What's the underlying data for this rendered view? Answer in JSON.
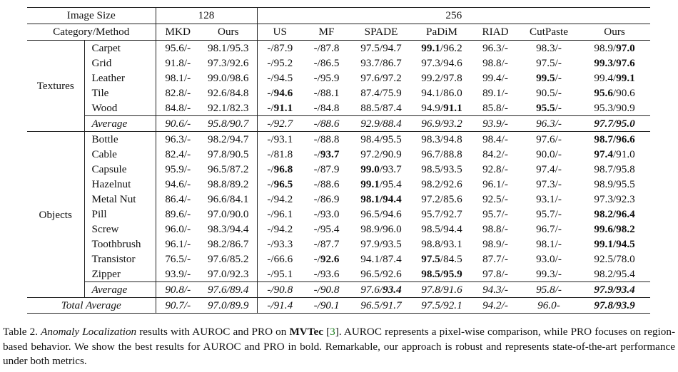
{
  "table": {
    "corner_top": "Image Size",
    "corner_bottom": "Category/Method",
    "size_groups": [
      "128",
      "256"
    ],
    "methods_128": [
      "MKD",
      "Ours"
    ],
    "methods_256": [
      "US",
      "MF",
      "SPADE",
      "PaDiM",
      "RIAD",
      "CutPaste",
      "Ours"
    ],
    "groups": [
      {
        "name": "Textures",
        "rows": [
          {
            "cat": "Carpet",
            "cells": [
              [
                "95.6/-",
                ""
              ],
              [
                "98.1/95.3",
                ""
              ],
              [
                "-/87.9",
                ""
              ],
              [
                "-/87.8",
                ""
              ],
              [
                "97.5/94.7",
                ""
              ],
              [
                "99.1",
                "/96.2"
              ],
              [
                "96.3/-",
                ""
              ],
              [
                "98.3/-",
                ""
              ],
              [
                "98.9/",
                "97.0"
              ]
            ],
            "bold": [
              0,
              0,
              0,
              0,
              0,
              1,
              0,
              0,
              2
            ]
          },
          {
            "cat": "Grid",
            "cells": [
              [
                "91.8/-",
                ""
              ],
              [
                "97.3/92.6",
                ""
              ],
              [
                "-/95.2",
                ""
              ],
              [
                "-/86.5",
                ""
              ],
              [
                "93.7/86.7",
                ""
              ],
              [
                "97.3/94.6",
                ""
              ],
              [
                "98.8/-",
                ""
              ],
              [
                "97.5/-",
                ""
              ],
              [
                "99.3/97.6",
                ""
              ]
            ],
            "bold": [
              0,
              0,
              0,
              0,
              0,
              0,
              0,
              0,
              3
            ]
          },
          {
            "cat": "Leather",
            "cells": [
              [
                "98.1/-",
                ""
              ],
              [
                "99.0/98.6",
                ""
              ],
              [
                "-/94.5",
                ""
              ],
              [
                "-/95.9",
                ""
              ],
              [
                "97.6/97.2",
                ""
              ],
              [
                "99.2/97.8",
                ""
              ],
              [
                "99.4/-",
                ""
              ],
              [
                "99.5",
                "/-"
              ],
              [
                "99.4/",
                "99.1"
              ]
            ],
            "bold": [
              0,
              0,
              0,
              0,
              0,
              0,
              0,
              1,
              2
            ]
          },
          {
            "cat": "Tile",
            "cells": [
              [
                "82.8/-",
                ""
              ],
              [
                "92.6/84.8",
                ""
              ],
              [
                "-/",
                "94.6"
              ],
              [
                "-/88.1",
                ""
              ],
              [
                "87.4/75.9",
                ""
              ],
              [
                "94.1/86.0",
                ""
              ],
              [
                "89.1/-",
                ""
              ],
              [
                "90.5/-",
                ""
              ],
              [
                "95.6",
                "/90.6"
              ]
            ],
            "bold": [
              0,
              0,
              2,
              0,
              0,
              0,
              0,
              0,
              1
            ]
          },
          {
            "cat": "Wood",
            "cells": [
              [
                "84.8/-",
                ""
              ],
              [
                "92.1/82.3",
                ""
              ],
              [
                "-/",
                "91.1"
              ],
              [
                "-/84.8",
                ""
              ],
              [
                "88.5/87.4",
                ""
              ],
              [
                "94.9/",
                "91.1"
              ],
              [
                "85.8/-",
                ""
              ],
              [
                "95.5",
                "/-"
              ],
              [
                "95.3/90.9",
                ""
              ]
            ],
            "bold": [
              0,
              0,
              2,
              0,
              0,
              2,
              0,
              1,
              0
            ]
          }
        ],
        "average": {
          "label": "Average",
          "cells": [
            [
              "90.6/-",
              ""
            ],
            [
              "95.8/90.7",
              ""
            ],
            [
              "-/92.7",
              ""
            ],
            [
              "-/88.6",
              ""
            ],
            [
              "92.9/88.4",
              ""
            ],
            [
              "96.9/93.2",
              ""
            ],
            [
              "93.9/-",
              ""
            ],
            [
              "96.3/-",
              ""
            ],
            [
              "97.7/95.0",
              ""
            ]
          ],
          "bold": [
            0,
            0,
            0,
            0,
            0,
            0,
            0,
            0,
            3
          ]
        }
      },
      {
        "name": "Objects",
        "rows": [
          {
            "cat": "Bottle",
            "cells": [
              [
                "96.3/-",
                ""
              ],
              [
                "98.2/94.7",
                ""
              ],
              [
                "-/93.1",
                ""
              ],
              [
                "-/88.8",
                ""
              ],
              [
                "98.4/95.5",
                ""
              ],
              [
                "98.3/94.8",
                ""
              ],
              [
                "98.4/-",
                ""
              ],
              [
                "97.6/-",
                ""
              ],
              [
                "98.7/96.6",
                ""
              ]
            ],
            "bold": [
              0,
              0,
              0,
              0,
              0,
              0,
              0,
              0,
              3
            ]
          },
          {
            "cat": "Cable",
            "cells": [
              [
                "82.4/-",
                ""
              ],
              [
                "97.8/90.5",
                ""
              ],
              [
                "-/81.8",
                ""
              ],
              [
                "-/",
                "93.7"
              ],
              [
                "97.2/90.9",
                ""
              ],
              [
                "96.7/88.8",
                ""
              ],
              [
                "84.2/-",
                ""
              ],
              [
                "90.0/-",
                ""
              ],
              [
                "97.4",
                "/91.0"
              ]
            ],
            "bold": [
              0,
              0,
              0,
              2,
              0,
              0,
              0,
              0,
              1
            ]
          },
          {
            "cat": "Capsule",
            "cells": [
              [
                "95.9/-",
                ""
              ],
              [
                "96.5/87.2",
                ""
              ],
              [
                "-/",
                "96.8"
              ],
              [
                "-/87.9",
                ""
              ],
              [
                "99.0",
                "/93.7"
              ],
              [
                "98.5/93.5",
                ""
              ],
              [
                "92.8/-",
                ""
              ],
              [
                "97.4/-",
                ""
              ],
              [
                "98.7/95.8",
                ""
              ]
            ],
            "bold": [
              0,
              0,
              2,
              0,
              1,
              0,
              0,
              0,
              0
            ]
          },
          {
            "cat": "Hazelnut",
            "cells": [
              [
                "94.6/-",
                ""
              ],
              [
                "98.8/89.2",
                ""
              ],
              [
                "-/",
                "96.5"
              ],
              [
                "-/88.6",
                ""
              ],
              [
                "99.1",
                "/95.4"
              ],
              [
                "98.2/92.6",
                ""
              ],
              [
                "96.1/-",
                ""
              ],
              [
                "97.3/-",
                ""
              ],
              [
                "98.9/95.5",
                ""
              ]
            ],
            "bold": [
              0,
              0,
              2,
              0,
              1,
              0,
              0,
              0,
              0
            ]
          },
          {
            "cat": "Metal Nut",
            "cells": [
              [
                "86.4/-",
                ""
              ],
              [
                "96.6/84.1",
                ""
              ],
              [
                "-/94.2",
                ""
              ],
              [
                "-/86.9",
                ""
              ],
              [
                "98.1/94.4",
                ""
              ],
              [
                "97.2/85.6",
                ""
              ],
              [
                "92.5/-",
                ""
              ],
              [
                "93.1/-",
                ""
              ],
              [
                "97.3/92.3",
                ""
              ]
            ],
            "bold": [
              0,
              0,
              0,
              0,
              3,
              0,
              0,
              0,
              0
            ]
          },
          {
            "cat": "Pill",
            "cells": [
              [
                "89.6/-",
                ""
              ],
              [
                "97.0/90.0",
                ""
              ],
              [
                "-/96.1",
                ""
              ],
              [
                "-/93.0",
                ""
              ],
              [
                "96.5/94.6",
                ""
              ],
              [
                "95.7/92.7",
                ""
              ],
              [
                "95.7/-",
                ""
              ],
              [
                "95.7/-",
                ""
              ],
              [
                "98.2/96.4",
                ""
              ]
            ],
            "bold": [
              0,
              0,
              0,
              0,
              0,
              0,
              0,
              0,
              3
            ]
          },
          {
            "cat": "Screw",
            "cells": [
              [
                "96.0/-",
                ""
              ],
              [
                "98.3/94.4",
                ""
              ],
              [
                "-/94.2",
                ""
              ],
              [
                "-/95.4",
                ""
              ],
              [
                "98.9/96.0",
                ""
              ],
              [
                "98.5/94.4",
                ""
              ],
              [
                "98.8/-",
                ""
              ],
              [
                "96.7/-",
                ""
              ],
              [
                "99.6/98.2",
                ""
              ]
            ],
            "bold": [
              0,
              0,
              0,
              0,
              0,
              0,
              0,
              0,
              3
            ]
          },
          {
            "cat": "Toothbrush",
            "cells": [
              [
                "96.1/-",
                ""
              ],
              [
                "98.2/86.7",
                ""
              ],
              [
                "-/93.3",
                ""
              ],
              [
                "-/87.7",
                ""
              ],
              [
                "97.9/93.5",
                ""
              ],
              [
                "98.8/93.1",
                ""
              ],
              [
                "98.9/-",
                ""
              ],
              [
                "98.1/-",
                ""
              ],
              [
                "99.1/94.5",
                ""
              ]
            ],
            "bold": [
              0,
              0,
              0,
              0,
              0,
              0,
              0,
              0,
              3
            ]
          },
          {
            "cat": "Transistor",
            "cells": [
              [
                "76.5/-",
                ""
              ],
              [
                "97.6/85.2",
                ""
              ],
              [
                "-/66.6",
                ""
              ],
              [
                "-/",
                "92.6"
              ],
              [
                "94.1/87.4",
                ""
              ],
              [
                "97.5",
                "/84.5"
              ],
              [
                "87.7/-",
                ""
              ],
              [
                "93.0/-",
                ""
              ],
              [
                "92.5/78.0",
                ""
              ]
            ],
            "bold": [
              0,
              0,
              0,
              2,
              0,
              1,
              0,
              0,
              0
            ]
          },
          {
            "cat": "Zipper",
            "cells": [
              [
                "93.9/-",
                ""
              ],
              [
                "97.0/92.3",
                ""
              ],
              [
                "-/95.1",
                ""
              ],
              [
                "-/93.6",
                ""
              ],
              [
                "96.5/92.6",
                ""
              ],
              [
                "98.5/95.9",
                ""
              ],
              [
                "97.8/-",
                ""
              ],
              [
                "99.3/-",
                ""
              ],
              [
                "98.2/95.4",
                ""
              ]
            ],
            "bold": [
              0,
              0,
              0,
              0,
              0,
              3,
              0,
              0,
              0
            ]
          }
        ],
        "average": {
          "label": "Average",
          "cells": [
            [
              "90.8/-",
              ""
            ],
            [
              "97.6/89.4",
              ""
            ],
            [
              "-/90.8",
              ""
            ],
            [
              "-/90.8",
              ""
            ],
            [
              "97.6/",
              "93.4"
            ],
            [
              "97.8/91.6",
              ""
            ],
            [
              "94.3/-",
              ""
            ],
            [
              "95.8/-",
              ""
            ],
            [
              "97.9/93.4",
              ""
            ]
          ],
          "bold": [
            0,
            0,
            0,
            0,
            2,
            0,
            0,
            0,
            3
          ]
        }
      }
    ],
    "total": {
      "label": "Total Average",
      "cells": [
        [
          "90.7/-",
          ""
        ],
        [
          "97.0/89.9",
          ""
        ],
        [
          "-/91.4",
          ""
        ],
        [
          "-/90.1",
          ""
        ],
        [
          "96.5/91.7",
          ""
        ],
        [
          "97.5/92.1",
          ""
        ],
        [
          "94.2/-",
          ""
        ],
        [
          "96.0-",
          ""
        ],
        [
          "97.8/93.9",
          ""
        ]
      ],
      "bold": [
        0,
        0,
        0,
        0,
        0,
        0,
        0,
        0,
        3
      ]
    }
  },
  "caption": {
    "prefix": "Table 2. ",
    "italic": "Anomaly Localization",
    "mid1": " results with AUROC and PRO on ",
    "bold": "MVTec",
    "ref_open": " [",
    "ref": "3",
    "ref_close": "]",
    "rest": ".  AUROC represents a pixel-wise comparison, while PRO focuses on region-based behavior.  We show the best results for AUROC and PRO in bold.  Remarkable, our approach is robust and represents state-of-the-art performance under both metrics."
  }
}
